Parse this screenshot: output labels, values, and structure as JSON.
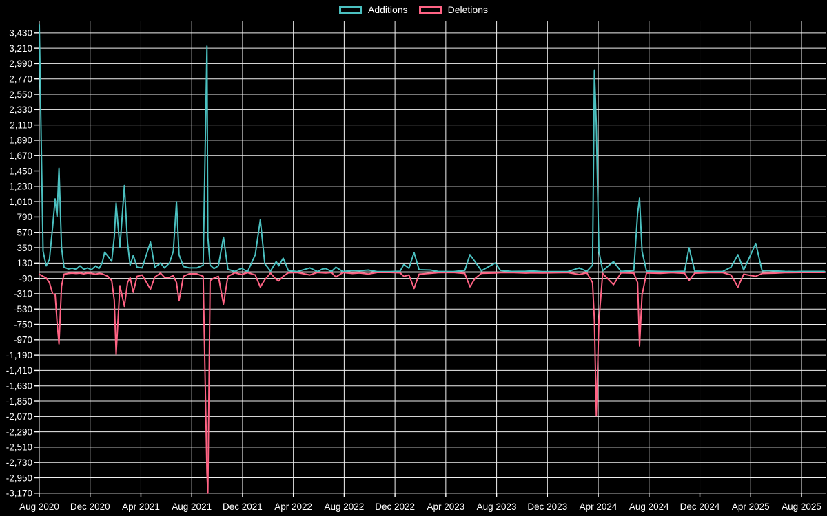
{
  "chart_data": {
    "type": "line",
    "title": "",
    "background": "#000000",
    "text_color": "#ffffff",
    "grid": {
      "shown": true,
      "color": "#f0f0f0",
      "zero_line_color": "#c9c9c9"
    },
    "legend": {
      "position": "top-center",
      "entries": [
        "Additions",
        "Deletions"
      ]
    },
    "x_axis": {
      "start": "Aug 2020",
      "end": "Aug 2025",
      "months_per_tick": 4,
      "tick_labels": [
        "Aug 2020",
        "Dec 2020",
        "Apr 2021",
        "Aug 2021",
        "Dec 2021",
        "Apr 2022",
        "Aug 2022",
        "Dec 2022",
        "Apr 2023",
        "Aug 2023",
        "Dec 2023",
        "Apr 2024",
        "Aug 2024",
        "Dec 2024",
        "Apr 2025",
        "Aug 2025"
      ]
    },
    "y_axis": {
      "max_tick": 3430,
      "min_tick": -3170,
      "tick_step": 220,
      "ticks": [
        3430,
        3210,
        2990,
        2770,
        2550,
        2330,
        2110,
        1890,
        1670,
        1450,
        1230,
        1010,
        790,
        570,
        350,
        130,
        -90,
        -310,
        -530,
        -750,
        -970,
        -1190,
        -1410,
        -1630,
        -1850,
        -2070,
        -2290,
        -2510,
        -2730,
        -2950,
        -3170
      ]
    },
    "x_months": [
      0,
      0.3,
      0.55,
      0.8,
      1.05,
      1.25,
      1.4,
      1.55,
      1.75,
      1.95,
      2.3,
      2.6,
      2.9,
      3.2,
      3.5,
      3.8,
      4.1,
      4.45,
      4.7,
      4.95,
      5.15,
      5.4,
      5.7,
      5.9,
      6.05,
      6.35,
      6.7,
      6.95,
      7.15,
      7.4,
      7.7,
      8.1,
      8.75,
      9.1,
      9.55,
      9.85,
      10.25,
      10.55,
      10.8,
      11.0,
      11.35,
      11.8,
      12.4,
      12.9,
      13.2,
      13.27,
      13.45,
      13.75,
      14.1,
      14.5,
      14.85,
      15.4,
      15.9,
      16.4,
      17.0,
      17.4,
      17.75,
      18.2,
      18.65,
      18.85,
      19.2,
      19.6,
      20.3,
      21.3,
      21.9,
      22.3,
      22.55,
      23.0,
      23.35,
      23.9,
      24.65,
      25.2,
      25.9,
      26.6,
      27.6,
      28.4,
      28.7,
      29.1,
      29.5,
      29.9,
      30.8,
      31.4,
      32.6,
      33.5,
      33.9,
      34.3,
      34.8,
      35.9,
      36.3,
      37.2,
      38.3,
      38.8,
      39.6,
      40.3,
      41.6,
      42.5,
      43.1,
      43.55,
      43.7,
      43.85,
      44.05,
      44.35,
      45.2,
      45.8,
      46.8,
      47.1,
      47.25,
      47.45,
      47.8,
      48.9,
      49.8,
      50.8,
      51.15,
      51.6,
      52.7,
      53.8,
      54.45,
      55.0,
      55.45,
      56.4,
      56.9,
      57.35,
      57.95,
      58.7,
      59.5,
      60.0,
      61.8
    ],
    "series": [
      {
        "name": "Additions",
        "color": "#4bc0c0",
        "values": [
          3550,
          300,
          90,
          180,
          650,
          1050,
          800,
          1490,
          350,
          70,
          45,
          55,
          40,
          90,
          40,
          60,
          35,
          90,
          50,
          130,
          285,
          230,
          155,
          500,
          990,
          350,
          1240,
          420,
          100,
          240,
          70,
          60,
          430,
          70,
          130,
          60,
          130,
          300,
          1010,
          250,
          80,
          60,
          60,
          100,
          3240,
          500,
          100,
          50,
          90,
          500,
          40,
          10,
          55,
          8,
          250,
          750,
          120,
          15,
          150,
          90,
          200,
          25,
          8,
          60,
          8,
          45,
          50,
          10,
          70,
          8,
          25,
          20,
          30,
          8,
          8,
          12,
          110,
          55,
          280,
          35,
          30,
          10,
          8,
          25,
          250,
          150,
          20,
          130,
          25,
          10,
          12,
          18,
          8,
          8,
          8,
          60,
          12,
          100,
          2890,
          2100,
          300,
          20,
          150,
          10,
          25,
          840,
          1060,
          300,
          15,
          10,
          8,
          12,
          350,
          15,
          8,
          10,
          70,
          250,
          30,
          410,
          20,
          25,
          18,
          10,
          8,
          10,
          10
        ]
      },
      {
        "name": "Deletions",
        "color": "#ff6384",
        "values": [
          -30,
          -60,
          -85,
          -150,
          -310,
          -320,
          -715,
          -1030,
          -200,
          -30,
          -20,
          -15,
          -20,
          -15,
          -25,
          -15,
          -20,
          -30,
          -20,
          -25,
          -40,
          -60,
          -120,
          -400,
          -1180,
          -195,
          -490,
          -150,
          -80,
          -290,
          -60,
          -40,
          -245,
          -70,
          -15,
          -75,
          -75,
          -50,
          -150,
          -410,
          -60,
          -25,
          -25,
          -60,
          -2880,
          -3170,
          -120,
          -85,
          -60,
          -460,
          -60,
          -10,
          -35,
          -8,
          -40,
          -215,
          -110,
          -15,
          -105,
          -125,
          -60,
          -10,
          -6,
          -40,
          -6,
          -10,
          -12,
          -6,
          -70,
          -6,
          -20,
          -12,
          -28,
          -5,
          -5,
          -10,
          -60,
          -40,
          -235,
          -30,
          -18,
          -8,
          -5,
          -20,
          -210,
          -90,
          -18,
          -12,
          -8,
          -6,
          -14,
          -10,
          -12,
          -10,
          -6,
          -35,
          -10,
          -150,
          -700,
          -2060,
          -700,
          -20,
          -180,
          -10,
          -15,
          -150,
          -1060,
          -330,
          -12,
          -18,
          -8,
          -18,
          -120,
          -15,
          -8,
          -8,
          -40,
          -215,
          -30,
          -60,
          -20,
          -18,
          -15,
          -8,
          -6,
          -5,
          -5
        ]
      }
    ]
  }
}
